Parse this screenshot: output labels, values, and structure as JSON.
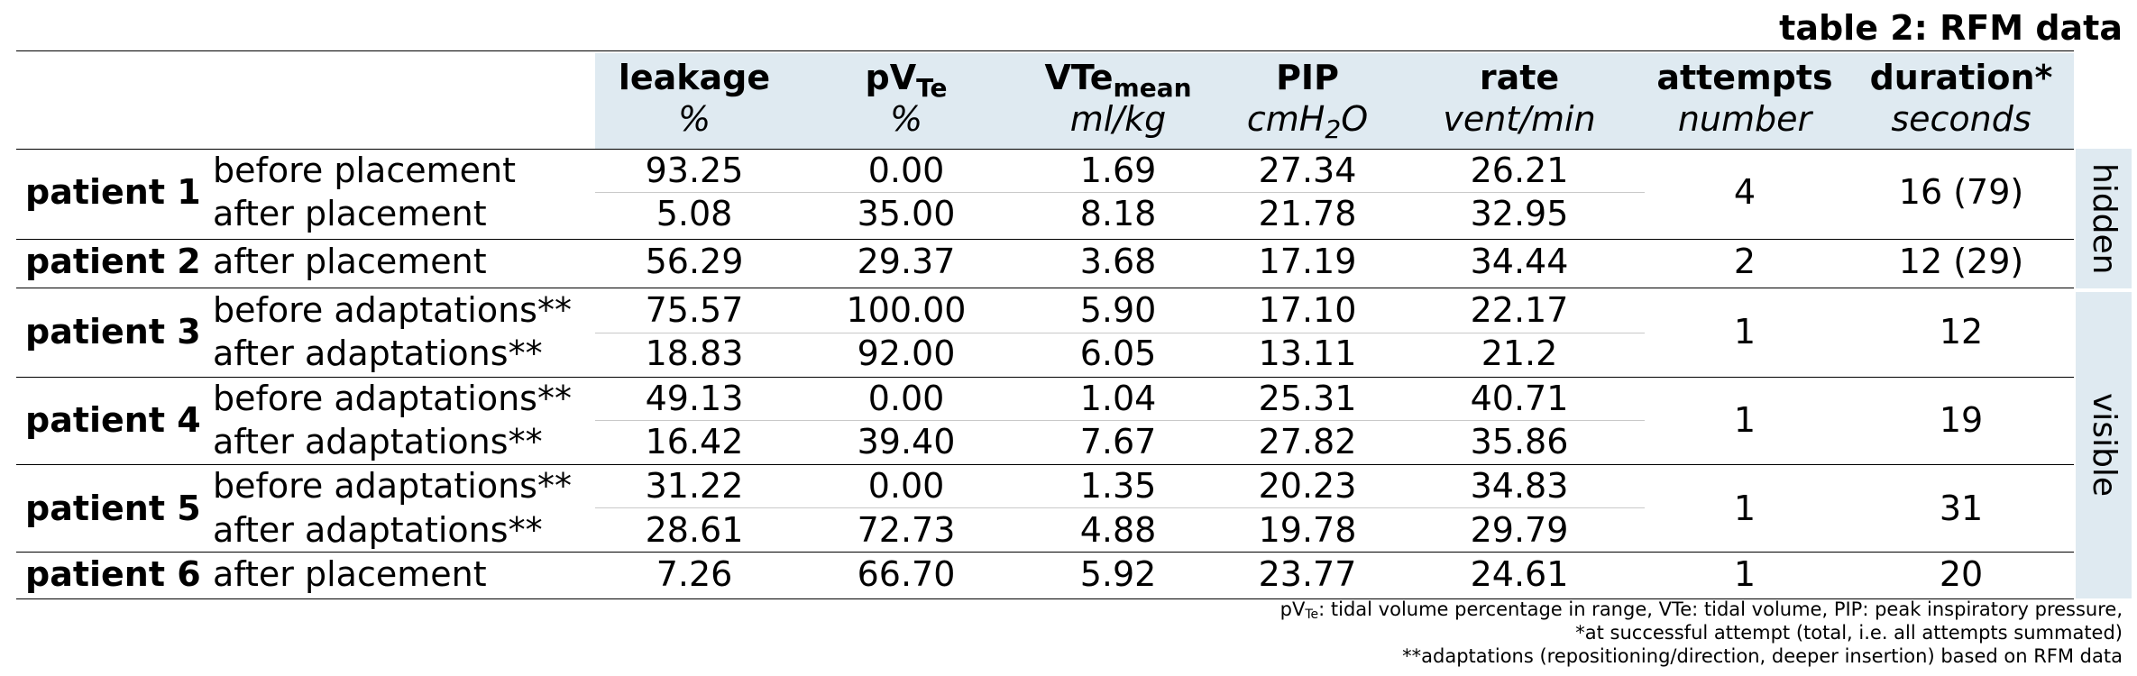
{
  "title": "table 2: RFM data",
  "headers": [
    {
      "top": "leakage",
      "top_sub": "",
      "unit": "%",
      "unit_sub": "",
      "unit_after": ""
    },
    {
      "top": "pV",
      "top_sub": "Te",
      "unit": "%",
      "unit_sub": "",
      "unit_after": ""
    },
    {
      "top": "VTe",
      "top_sub": "mean",
      "unit": "ml/kg",
      "unit_sub": "",
      "unit_after": ""
    },
    {
      "top": "PIP",
      "top_sub": "",
      "unit": "cmH",
      "unit_sub": "2",
      "unit_after": "O"
    },
    {
      "top": "rate",
      "top_sub": "",
      "unit": "vent/min",
      "unit_sub": "",
      "unit_after": ""
    },
    {
      "top": "attempts",
      "top_sub": "",
      "unit": "number",
      "unit_sub": "",
      "unit_after": ""
    },
    {
      "top": "duration*",
      "top_sub": "",
      "unit": "seconds",
      "unit_sub": "",
      "unit_after": ""
    }
  ],
  "patients": [
    {
      "name": "patient 1",
      "attempts": "4",
      "duration": "16 (79)",
      "rows": [
        {
          "condition": "before placement",
          "values": [
            "93.25",
            "0.00",
            "1.69",
            "27.34",
            "26.21"
          ]
        },
        {
          "condition": "after placement",
          "values": [
            "5.08",
            "35.00",
            "8.18",
            "21.78",
            "32.95"
          ]
        }
      ]
    },
    {
      "name": "patient 2",
      "attempts": "2",
      "duration": "12 (29)",
      "rows": [
        {
          "condition": "after placement",
          "values": [
            "56.29",
            "29.37",
            "3.68",
            "17.19",
            "34.44"
          ]
        }
      ]
    },
    {
      "name": "patient 3",
      "attempts": "1",
      "duration": "12",
      "rows": [
        {
          "condition": "before adaptations**",
          "values": [
            "75.57",
            "100.00",
            "5.90",
            "17.10",
            "22.17"
          ]
        },
        {
          "condition": "after adaptations**",
          "values": [
            "18.83",
            "92.00",
            "6.05",
            "13.11",
            "21.2"
          ]
        }
      ]
    },
    {
      "name": "patient 4",
      "attempts": "1",
      "duration": "19",
      "rows": [
        {
          "condition": "before adaptations**",
          "values": [
            "49.13",
            "0.00",
            "1.04",
            "25.31",
            "40.71"
          ]
        },
        {
          "condition": "after adaptations**",
          "values": [
            "16.42",
            "39.40",
            "7.67",
            "27.82",
            "35.86"
          ]
        }
      ]
    },
    {
      "name": "patient 5",
      "attempts": "1",
      "duration": "31",
      "rows": [
        {
          "condition": "before adaptations**",
          "values": [
            "31.22",
            "0.00",
            "1.35",
            "20.23",
            "34.83"
          ]
        },
        {
          "condition": "after adaptations**",
          "values": [
            "28.61",
            "72.73",
            "4.88",
            "19.78",
            "29.79"
          ]
        }
      ]
    },
    {
      "name": "patient 6",
      "attempts": "1",
      "duration": "20",
      "rows": [
        {
          "condition": "after placement",
          "values": [
            "7.26",
            "66.70",
            "5.92",
            "23.77",
            "24.61"
          ]
        }
      ]
    }
  ],
  "side_labels": {
    "hidden": "hidden",
    "visible": "visible"
  },
  "footnotes": {
    "line1_a": "pV",
    "line1_sub": "Te",
    "line1_b": ": tidal volume percentage in range, VTe: tidal volume, PIP: peak inspiratory pressure,",
    "line2": "*at successful attempt (total, i.e. all attempts summated)",
    "line3": "**adaptations (repositioning/direction, deeper insertion) based on RFM data"
  }
}
